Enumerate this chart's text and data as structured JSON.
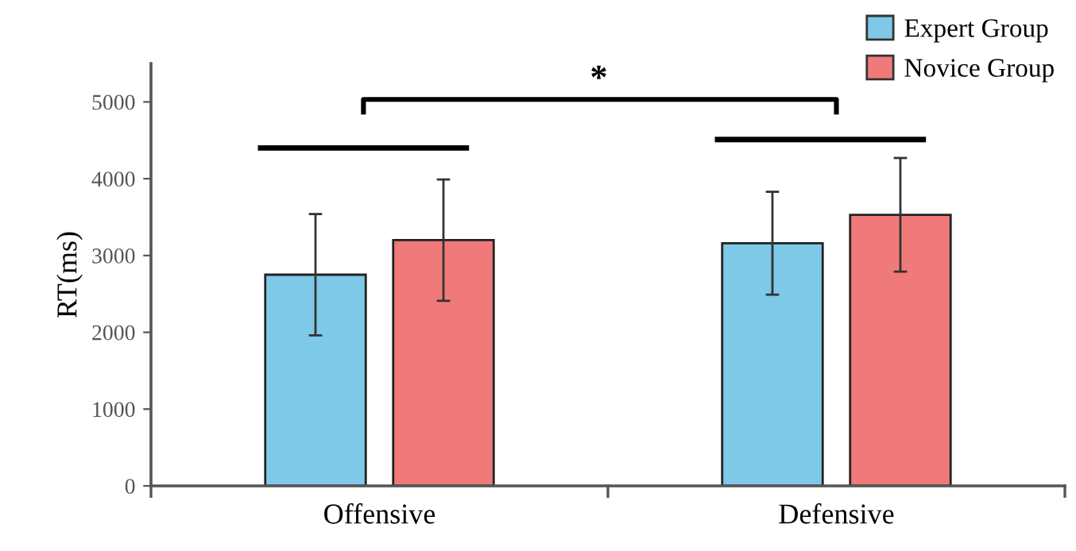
{
  "chart_data": {
    "type": "bar",
    "ylabel": "RT(ms)",
    "categories": [
      "Offensive",
      "Defensive"
    ],
    "series": [
      {
        "name": "Expert Group",
        "color": "#7ec8e8",
        "values": [
          2750,
          3160
        ],
        "errors": [
          790,
          670
        ]
      },
      {
        "name": "Novice Group",
        "color": "#f07a7a",
        "values": [
          3200,
          3530
        ],
        "errors": [
          790,
          740
        ]
      }
    ],
    "ylim": [
      0,
      5500
    ],
    "yticks": [
      0,
      1000,
      2000,
      3000,
      4000,
      5000
    ],
    "grid": false,
    "legend": "top right",
    "annotations": [
      "*"
    ]
  }
}
